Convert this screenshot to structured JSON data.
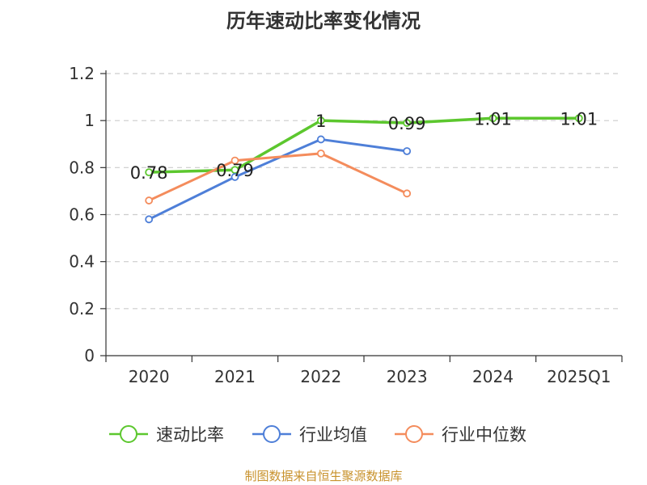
{
  "chart_data": {
    "type": "line",
    "title": "历年速动比率变化情况",
    "categories": [
      "2020",
      "2021",
      "2022",
      "2023",
      "2024",
      "2025Q1"
    ],
    "ylim": [
      0,
      1.2
    ],
    "yticks": [
      "0",
      "0.2",
      "0.4",
      "0.6",
      "0.8",
      "1",
      "1.2"
    ],
    "grid": true,
    "legend_position": "bottom",
    "series": [
      {
        "name": "速动比率",
        "color": "#5cc72e",
        "values": [
          0.78,
          0.79,
          1.0,
          0.99,
          1.01,
          1.01
        ],
        "labels": [
          "0.78",
          "0.79",
          "1",
          "0.99",
          "1.01",
          "1.01"
        ]
      },
      {
        "name": "行业均值",
        "color": "#4e7fd8",
        "values": [
          0.58,
          0.76,
          0.92,
          0.87,
          null,
          null
        ]
      },
      {
        "name": "行业中位数",
        "color": "#f48c5c",
        "values": [
          0.66,
          0.83,
          0.86,
          0.69,
          null,
          null
        ]
      }
    ]
  },
  "footer": "制图数据来自恒生聚源数据库"
}
